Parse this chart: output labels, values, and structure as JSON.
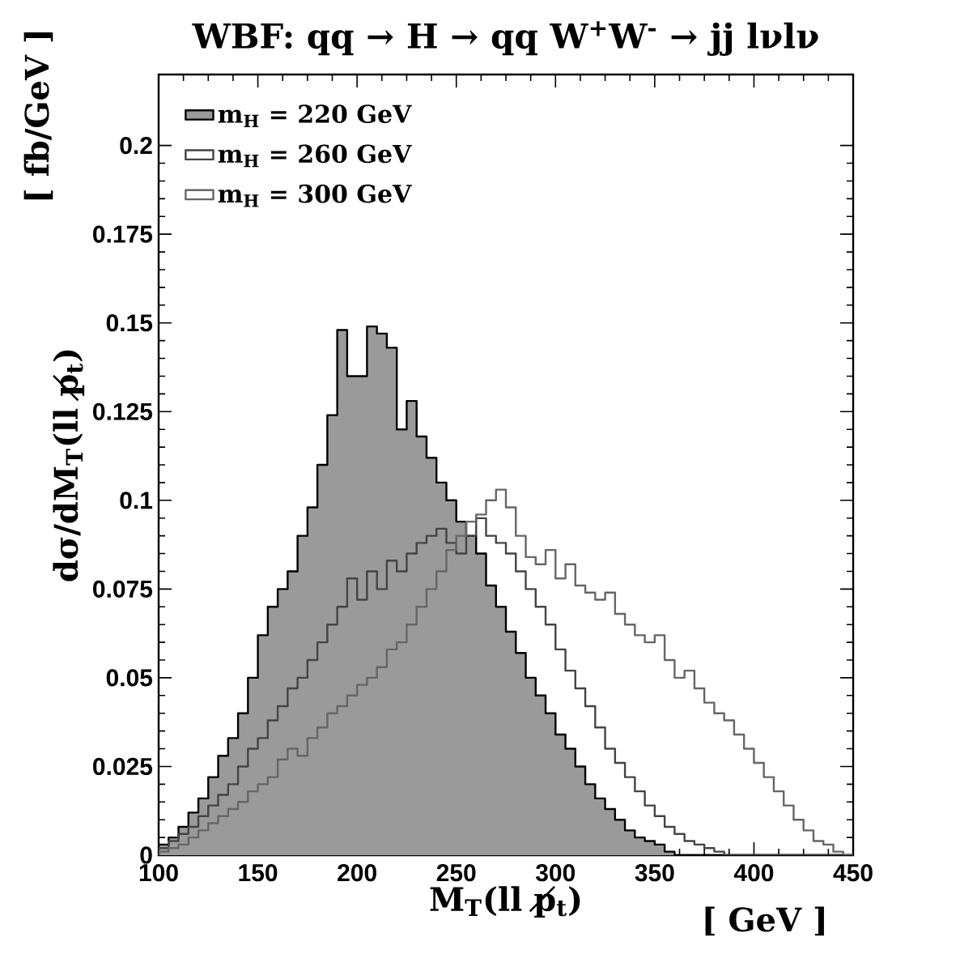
{
  "chart_data": {
    "type": "histogram",
    "title": "WBF: qq → H → qq W$^{+}$W$^{-}$ → jj lνlν",
    "xlabel": "M$_{T}$(ll p̸$_{t}$)",
    "ylabel": "dσ/dM$_{T}$(ll p̸$_{t}$)",
    "annotations": [
      "[ GeV ]",
      "[ fb/GeV ]"
    ],
    "bins": [
      100,
      105,
      110,
      115,
      120,
      125,
      130,
      135,
      140,
      145,
      150,
      155,
      160,
      165,
      170,
      175,
      180,
      185,
      190,
      195,
      200,
      205,
      210,
      215,
      220,
      225,
      230,
      235,
      240,
      245,
      250,
      255,
      260,
      265,
      270,
      275,
      280,
      285,
      290,
      295,
      300,
      305,
      310,
      315,
      320,
      325,
      330,
      335,
      340,
      345,
      350,
      355,
      360,
      365,
      370,
      375,
      380,
      385,
      390,
      395,
      400,
      405,
      410,
      415,
      420,
      425,
      430,
      435,
      440,
      445,
      450
    ],
    "series": [
      {
        "name": "m$_{H}$ = 220 GeV",
        "color": "#9a9a9a",
        "values": [
          0.003,
          0.005,
          0.008,
          0.012,
          0.016,
          0.022,
          0.028,
          0.033,
          0.04,
          0.05,
          0.062,
          0.07,
          0.075,
          0.08,
          0.09,
          0.098,
          0.11,
          0.124,
          0.148,
          0.135,
          0.135,
          0.149,
          0.147,
          0.143,
          0.12,
          0.128,
          0.118,
          0.112,
          0.105,
          0.1,
          0.094,
          0.09,
          0.085,
          0.076,
          0.07,
          0.063,
          0.057,
          0.05,
          0.045,
          0.04,
          0.034,
          0.03,
          0.025,
          0.02,
          0.016,
          0.013,
          0.01,
          0.007,
          0.005,
          0.004,
          0.003,
          0.001,
          0,
          0,
          0,
          0,
          0,
          0,
          0,
          0,
          0,
          0,
          0,
          0,
          0,
          0,
          0,
          0,
          0,
          0
        ]
      },
      {
        "name": "m$_{H}$ = 260 GeV",
        "color": "#444444",
        "values": [
          0.002,
          0.004,
          0.006,
          0.008,
          0.011,
          0.014,
          0.017,
          0.02,
          0.025,
          0.03,
          0.033,
          0.038,
          0.042,
          0.047,
          0.05,
          0.055,
          0.06,
          0.065,
          0.07,
          0.078,
          0.072,
          0.08,
          0.075,
          0.083,
          0.08,
          0.085,
          0.088,
          0.09,
          0.092,
          0.088,
          0.085,
          0.09,
          0.095,
          0.09,
          0.088,
          0.085,
          0.08,
          0.075,
          0.07,
          0.065,
          0.058,
          0.052,
          0.047,
          0.042,
          0.036,
          0.03,
          0.026,
          0.022,
          0.018,
          0.014,
          0.011,
          0.008,
          0.006,
          0.004,
          0.003,
          0.002,
          0.001,
          0,
          0,
          0,
          0,
          0,
          0,
          0,
          0,
          0,
          0,
          0,
          0,
          0
        ]
      },
      {
        "name": "m$_{H}$ = 300 GeV",
        "color": "#666666",
        "values": [
          0.001,
          0.002,
          0.003,
          0.005,
          0.007,
          0.009,
          0.011,
          0.013,
          0.015,
          0.018,
          0.02,
          0.022,
          0.027,
          0.03,
          0.028,
          0.033,
          0.036,
          0.04,
          0.042,
          0.045,
          0.048,
          0.05,
          0.053,
          0.058,
          0.06,
          0.065,
          0.07,
          0.075,
          0.08,
          0.086,
          0.09,
          0.094,
          0.096,
          0.1,
          0.103,
          0.098,
          0.09,
          0.084,
          0.082,
          0.086,
          0.078,
          0.082,
          0.076,
          0.074,
          0.072,
          0.074,
          0.068,
          0.065,
          0.062,
          0.06,
          0.062,
          0.055,
          0.05,
          0.052,
          0.047,
          0.043,
          0.04,
          0.038,
          0.034,
          0.03,
          0.026,
          0.022,
          0.018,
          0.014,
          0.01,
          0.007,
          0.004,
          0.003,
          0.001,
          0
        ]
      }
    ],
    "xlim": [
      100,
      450
    ],
    "ylim": [
      0,
      0.22
    ],
    "xticks": [
      100,
      150,
      200,
      250,
      300,
      350,
      400,
      450
    ],
    "yticks": [
      0,
      0.025,
      0.05,
      0.075,
      0.1,
      0.125,
      0.15,
      0.175,
      0.2
    ],
    "legend": "top left",
    "grid": false
  }
}
